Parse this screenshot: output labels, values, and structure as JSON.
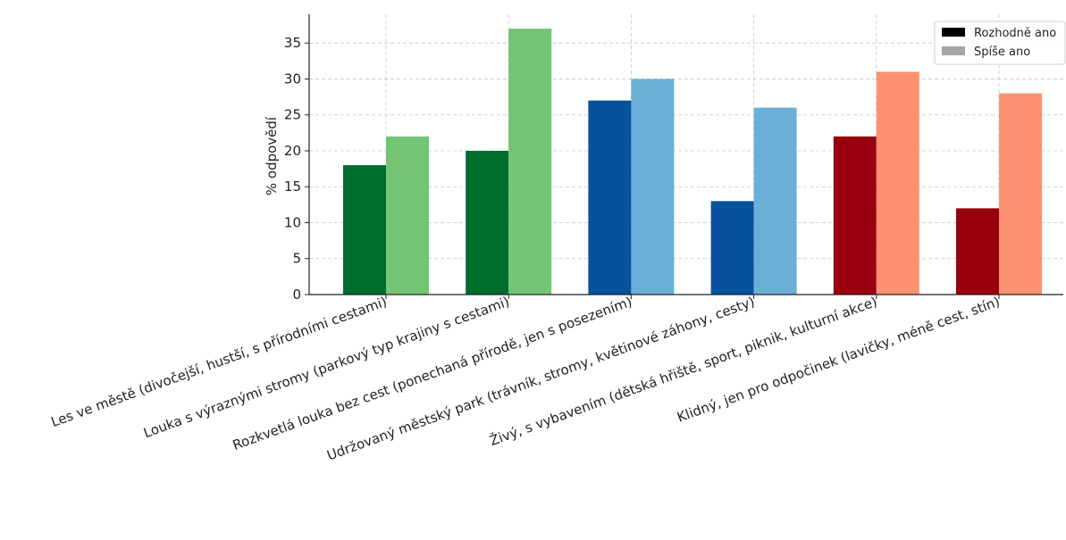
{
  "chart_data": {
    "type": "bar",
    "title": "",
    "xlabel": "",
    "ylabel": "% odpovědí",
    "ylim": [
      0,
      39
    ],
    "yticks": [
      0,
      5,
      10,
      15,
      20,
      25,
      30,
      35
    ],
    "grid": true,
    "legend_position": "top-right",
    "categories": [
      "Les ve městě (divočejší, hustší, s přírodními cestami)",
      "Louka s výraznými stromy (parkový typ krajiny s cestami)",
      "Rozkvetlá louka bez cest (ponechaná přírodě, jen s posezením)",
      "Udržovaný městský park (trávník, stromy, květinové záhony, cesty)",
      "Živý, s vybavením (dětská hřiště, sport, piknik, kulturní akce)",
      "Klidný, jen pro odpočinek (lavičky, méně cest, stín)"
    ],
    "series": [
      {
        "name": "Rozhodně ano",
        "legend_color": "#000000",
        "values": [
          18,
          20,
          27,
          13,
          22,
          12
        ],
        "colors": [
          "#006d2c",
          "#006d2c",
          "#08519c",
          "#08519c",
          "#99000d",
          "#99000d"
        ]
      },
      {
        "name": "Spíše ano",
        "legend_color": "#a6a6a6",
        "values": [
          22,
          37,
          30,
          26,
          31,
          28
        ],
        "colors": [
          "#74c476",
          "#74c476",
          "#6baed6",
          "#6baed6",
          "#fc9272",
          "#fc9272"
        ]
      }
    ]
  }
}
